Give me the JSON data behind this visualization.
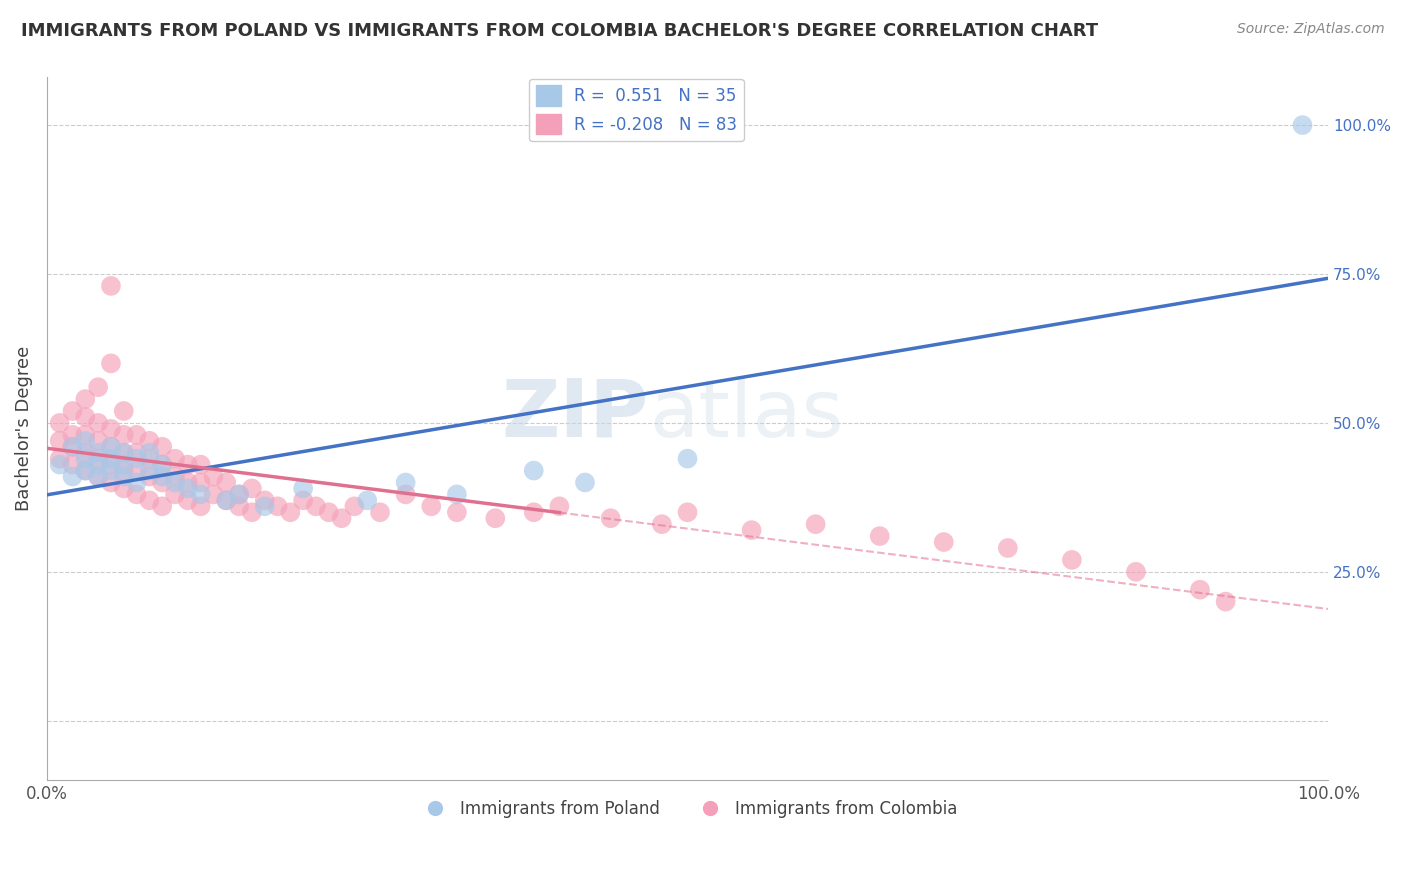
{
  "title": "IMMIGRANTS FROM POLAND VS IMMIGRANTS FROM COLOMBIA BACHELOR'S DEGREE CORRELATION CHART",
  "source": "Source: ZipAtlas.com",
  "ylabel": "Bachelor's Degree",
  "watermark": "ZIPatlas",
  "poland_color": "#a8c8e8",
  "colombia_color": "#f4a0b8",
  "poland_line_color": "#4472c4",
  "colombia_line_color": "#e07090",
  "poland_R": 0.551,
  "poland_N": 35,
  "colombia_R": -0.208,
  "colombia_N": 83,
  "background_color": "#ffffff",
  "grid_color": "#cccccc",
  "xlim": [
    0.0,
    1.0
  ],
  "ylim": [
    -0.1,
    1.08
  ],
  "poland_x": [
    0.01,
    0.02,
    0.02,
    0.03,
    0.03,
    0.03,
    0.04,
    0.04,
    0.04,
    0.05,
    0.05,
    0.05,
    0.06,
    0.06,
    0.06,
    0.07,
    0.07,
    0.08,
    0.08,
    0.09,
    0.09,
    0.1,
    0.11,
    0.12,
    0.14,
    0.15,
    0.17,
    0.2,
    0.25,
    0.28,
    0.32,
    0.38,
    0.42,
    0.5,
    0.98
  ],
  "poland_y": [
    0.43,
    0.46,
    0.41,
    0.44,
    0.47,
    0.42,
    0.45,
    0.43,
    0.41,
    0.44,
    0.42,
    0.46,
    0.45,
    0.43,
    0.41,
    0.4,
    0.44,
    0.42,
    0.45,
    0.43,
    0.41,
    0.4,
    0.39,
    0.38,
    0.37,
    0.38,
    0.36,
    0.39,
    0.37,
    0.4,
    0.38,
    0.42,
    0.4,
    0.44,
    1.0
  ],
  "colombia_x": [
    0.01,
    0.01,
    0.01,
    0.02,
    0.02,
    0.02,
    0.02,
    0.03,
    0.03,
    0.03,
    0.03,
    0.03,
    0.04,
    0.04,
    0.04,
    0.04,
    0.04,
    0.05,
    0.05,
    0.05,
    0.05,
    0.05,
    0.06,
    0.06,
    0.06,
    0.06,
    0.06,
    0.07,
    0.07,
    0.07,
    0.07,
    0.08,
    0.08,
    0.08,
    0.08,
    0.09,
    0.09,
    0.09,
    0.09,
    0.1,
    0.1,
    0.1,
    0.11,
    0.11,
    0.11,
    0.12,
    0.12,
    0.12,
    0.13,
    0.13,
    0.14,
    0.14,
    0.15,
    0.15,
    0.16,
    0.16,
    0.17,
    0.18,
    0.19,
    0.2,
    0.21,
    0.22,
    0.23,
    0.24,
    0.26,
    0.28,
    0.3,
    0.32,
    0.35,
    0.38,
    0.4,
    0.44,
    0.48,
    0.5,
    0.55,
    0.6,
    0.65,
    0.7,
    0.75,
    0.8,
    0.85,
    0.9,
    0.92
  ],
  "colombia_y": [
    0.44,
    0.47,
    0.5,
    0.43,
    0.46,
    0.48,
    0.52,
    0.42,
    0.45,
    0.48,
    0.51,
    0.54,
    0.41,
    0.44,
    0.47,
    0.5,
    0.56,
    0.4,
    0.43,
    0.46,
    0.49,
    0.6,
    0.39,
    0.42,
    0.45,
    0.48,
    0.52,
    0.38,
    0.42,
    0.45,
    0.48,
    0.37,
    0.41,
    0.44,
    0.47,
    0.36,
    0.4,
    0.43,
    0.46,
    0.38,
    0.41,
    0.44,
    0.37,
    0.4,
    0.43,
    0.36,
    0.4,
    0.43,
    0.38,
    0.41,
    0.37,
    0.4,
    0.36,
    0.38,
    0.35,
    0.39,
    0.37,
    0.36,
    0.35,
    0.37,
    0.36,
    0.35,
    0.34,
    0.36,
    0.35,
    0.38,
    0.36,
    0.35,
    0.34,
    0.35,
    0.36,
    0.34,
    0.33,
    0.35,
    0.32,
    0.33,
    0.31,
    0.3,
    0.29,
    0.27,
    0.25,
    0.22,
    0.2
  ],
  "colombia_outlier_x": [
    0.05
  ],
  "colombia_outlier_y": [
    0.73
  ]
}
